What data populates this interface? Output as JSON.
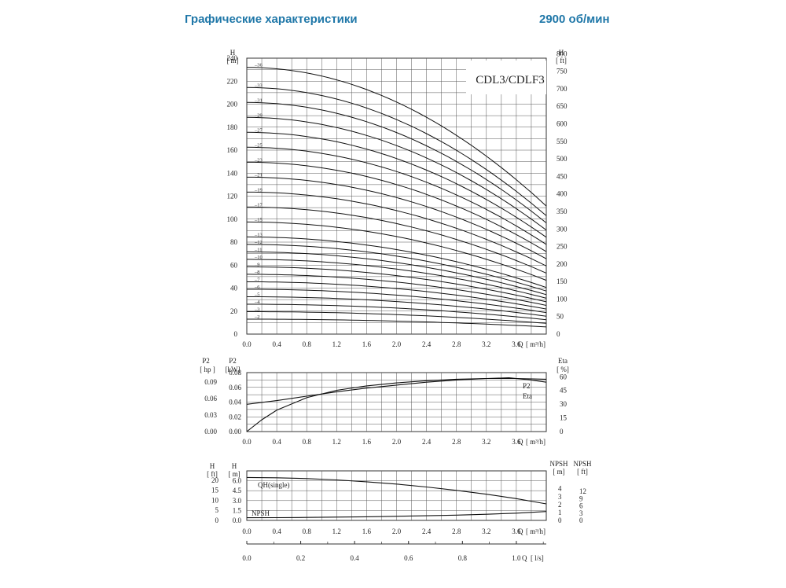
{
  "header": {
    "left": "Графические характеристики",
    "right": "2900 об/мин"
  },
  "chart_data": [
    {
      "type": "line",
      "title": "CDL3/CDLF3",
      "y_label_left": "H",
      "y_unit_left": "[ m]",
      "y_label_right": "H",
      "y_unit_right": "[ ft]",
      "x_label": "Q",
      "x_unit": "[ m³/h]",
      "xlim": [
        0,
        4.0
      ],
      "ylim": [
        0,
        240
      ],
      "x_ticks": [
        "0.0",
        "0.4",
        "0.8",
        "1.2",
        "1.6",
        "2.0",
        "2.4",
        "2.8",
        "3.2",
        "3.6"
      ],
      "y_ticks_left": [
        "0",
        "20",
        "40",
        "60",
        "80",
        "100",
        "120",
        "140",
        "160",
        "180",
        "200",
        "220",
        "240"
      ],
      "y_ticks_right": [
        "0",
        "50",
        "100",
        "150",
        "200",
        "250",
        "300",
        "350",
        "400",
        "450",
        "500",
        "550",
        "600",
        "650",
        "700",
        "750",
        "800"
      ],
      "grid": true,
      "curve_shape": "H(Q) = H0 · (1 − 0.0325·Q²), Q from 0 to 4.0",
      "series": [
        {
          "name": "2",
          "h0": 13
        },
        {
          "name": "3",
          "h0": 19.5
        },
        {
          "name": "4",
          "h0": 26
        },
        {
          "name": "5",
          "h0": 32.5
        },
        {
          "name": "6",
          "h0": 39
        },
        {
          "name": "7",
          "h0": 45.5
        },
        {
          "name": "8",
          "h0": 52
        },
        {
          "name": "9",
          "h0": 58.5
        },
        {
          "name": "10",
          "h0": 65
        },
        {
          "name": "11",
          "h0": 71.5
        },
        {
          "name": "12",
          "h0": 78
        },
        {
          "name": "13",
          "h0": 84.5
        },
        {
          "name": "15",
          "h0": 97.5
        },
        {
          "name": "17",
          "h0": 110.5
        },
        {
          "name": "19",
          "h0": 123.5
        },
        {
          "name": "21",
          "h0": 136.5
        },
        {
          "name": "23",
          "h0": 149.5
        },
        {
          "name": "25",
          "h0": 162.5
        },
        {
          "name": "27",
          "h0": 175.5
        },
        {
          "name": "29",
          "h0": 188.5
        },
        {
          "name": "31",
          "h0": 201.5
        },
        {
          "name": "33",
          "h0": 214.5
        },
        {
          "name": "36",
          "h0": 232
        }
      ]
    },
    {
      "type": "line",
      "y_label_hp": "P2",
      "y_unit_hp": "[ hp ]",
      "y_label_kw": "P2",
      "y_unit_kw": "[kW]",
      "y_label_right": "Eta",
      "y_unit_right": "[ %]",
      "x_label": "Q",
      "x_unit": "[ m³/h]",
      "xlim": [
        0,
        4.0
      ],
      "ylim_kw": [
        0,
        0.08
      ],
      "x_ticks": [
        "0.0",
        "0.4",
        "0.8",
        "1.2",
        "1.6",
        "2.0",
        "2.4",
        "2.8",
        "3.2",
        "3.6"
      ],
      "y_ticks_kw": [
        "0.00",
        "0.02",
        "0.04",
        "0.06",
        "0.08"
      ],
      "y_ticks_hp": [
        "0.00",
        "0.03",
        "0.06",
        "0.09"
      ],
      "y_ticks_eta": [
        "0",
        "15",
        "30",
        "45",
        "60"
      ],
      "grid": true,
      "series": [
        {
          "name": "P2",
          "x": [
            0,
            0.4,
            0.8,
            1.2,
            1.6,
            2.0,
            2.4,
            2.8,
            3.2,
            3.6,
            4.0
          ],
          "y": [
            0.037,
            0.042,
            0.048,
            0.054,
            0.059,
            0.063,
            0.067,
            0.07,
            0.072,
            0.072,
            0.071
          ]
        },
        {
          "name": "Eta",
          "x": [
            0,
            0.2,
            0.4,
            0.8,
            1.2,
            1.6,
            2.0,
            2.4,
            2.8,
            3.2,
            3.5,
            3.8,
            4.0
          ],
          "y": [
            0,
            0.016,
            0.029,
            0.046,
            0.056,
            0.062,
            0.066,
            0.069,
            0.071,
            0.072,
            0.073,
            0.07,
            0.067
          ]
        }
      ]
    },
    {
      "type": "line",
      "y_label_ft": "H",
      "y_unit_ft": "[ ft]",
      "y_label_m": "H",
      "y_unit_m": "[ m]",
      "y_label_npsh_m": "NPSH",
      "y_unit_npsh_m": "[ m]",
      "y_label_npsh_ft": "NPSH",
      "y_unit_npsh_ft": "[ ft]",
      "x_label": "Q",
      "x_unit": "[ m³/h]",
      "x2_label": "Q",
      "x2_unit": "[ l/s]",
      "xlim": [
        0,
        4.0
      ],
      "ylim_m": [
        0,
        7.5
      ],
      "x_ticks": [
        "0.0",
        "0.4",
        "0.8",
        "1.2",
        "1.6",
        "2.0",
        "2.4",
        "2.8",
        "3.2",
        "3.6"
      ],
      "x2_ticks": [
        "0.0",
        "0.2",
        "0.4",
        "0.6",
        "0.8",
        "1.0"
      ],
      "y_ticks_m": [
        "0.0",
        "1.5",
        "3.0",
        "4.5",
        "6.0"
      ],
      "y_ticks_ft": [
        "0",
        "5",
        "10",
        "15",
        "20"
      ],
      "y_ticks_npsh_m": [
        "0",
        "1",
        "2",
        "3",
        "4"
      ],
      "y_ticks_npsh_ft": [
        "0",
        "3",
        "6",
        "9",
        "12"
      ],
      "grid": true,
      "series": [
        {
          "name": "QH(single)",
          "x": [
            0,
            0.4,
            0.8,
            1.2,
            1.6,
            2.0,
            2.4,
            2.8,
            3.2,
            3.6,
            4.0
          ],
          "y": [
            6.5,
            6.45,
            6.33,
            6.13,
            5.85,
            5.5,
            5.06,
            4.55,
            3.96,
            3.3,
            2.5
          ]
        },
        {
          "name": "NPSH",
          "x": [
            0,
            0.4,
            0.8,
            1.2,
            1.6,
            2.0,
            2.4,
            2.8,
            3.2,
            3.6,
            4.0
          ],
          "y": [
            0.4,
            0.42,
            0.45,
            0.5,
            0.55,
            0.62,
            0.7,
            0.8,
            0.93,
            1.1,
            1.35
          ]
        }
      ]
    }
  ]
}
